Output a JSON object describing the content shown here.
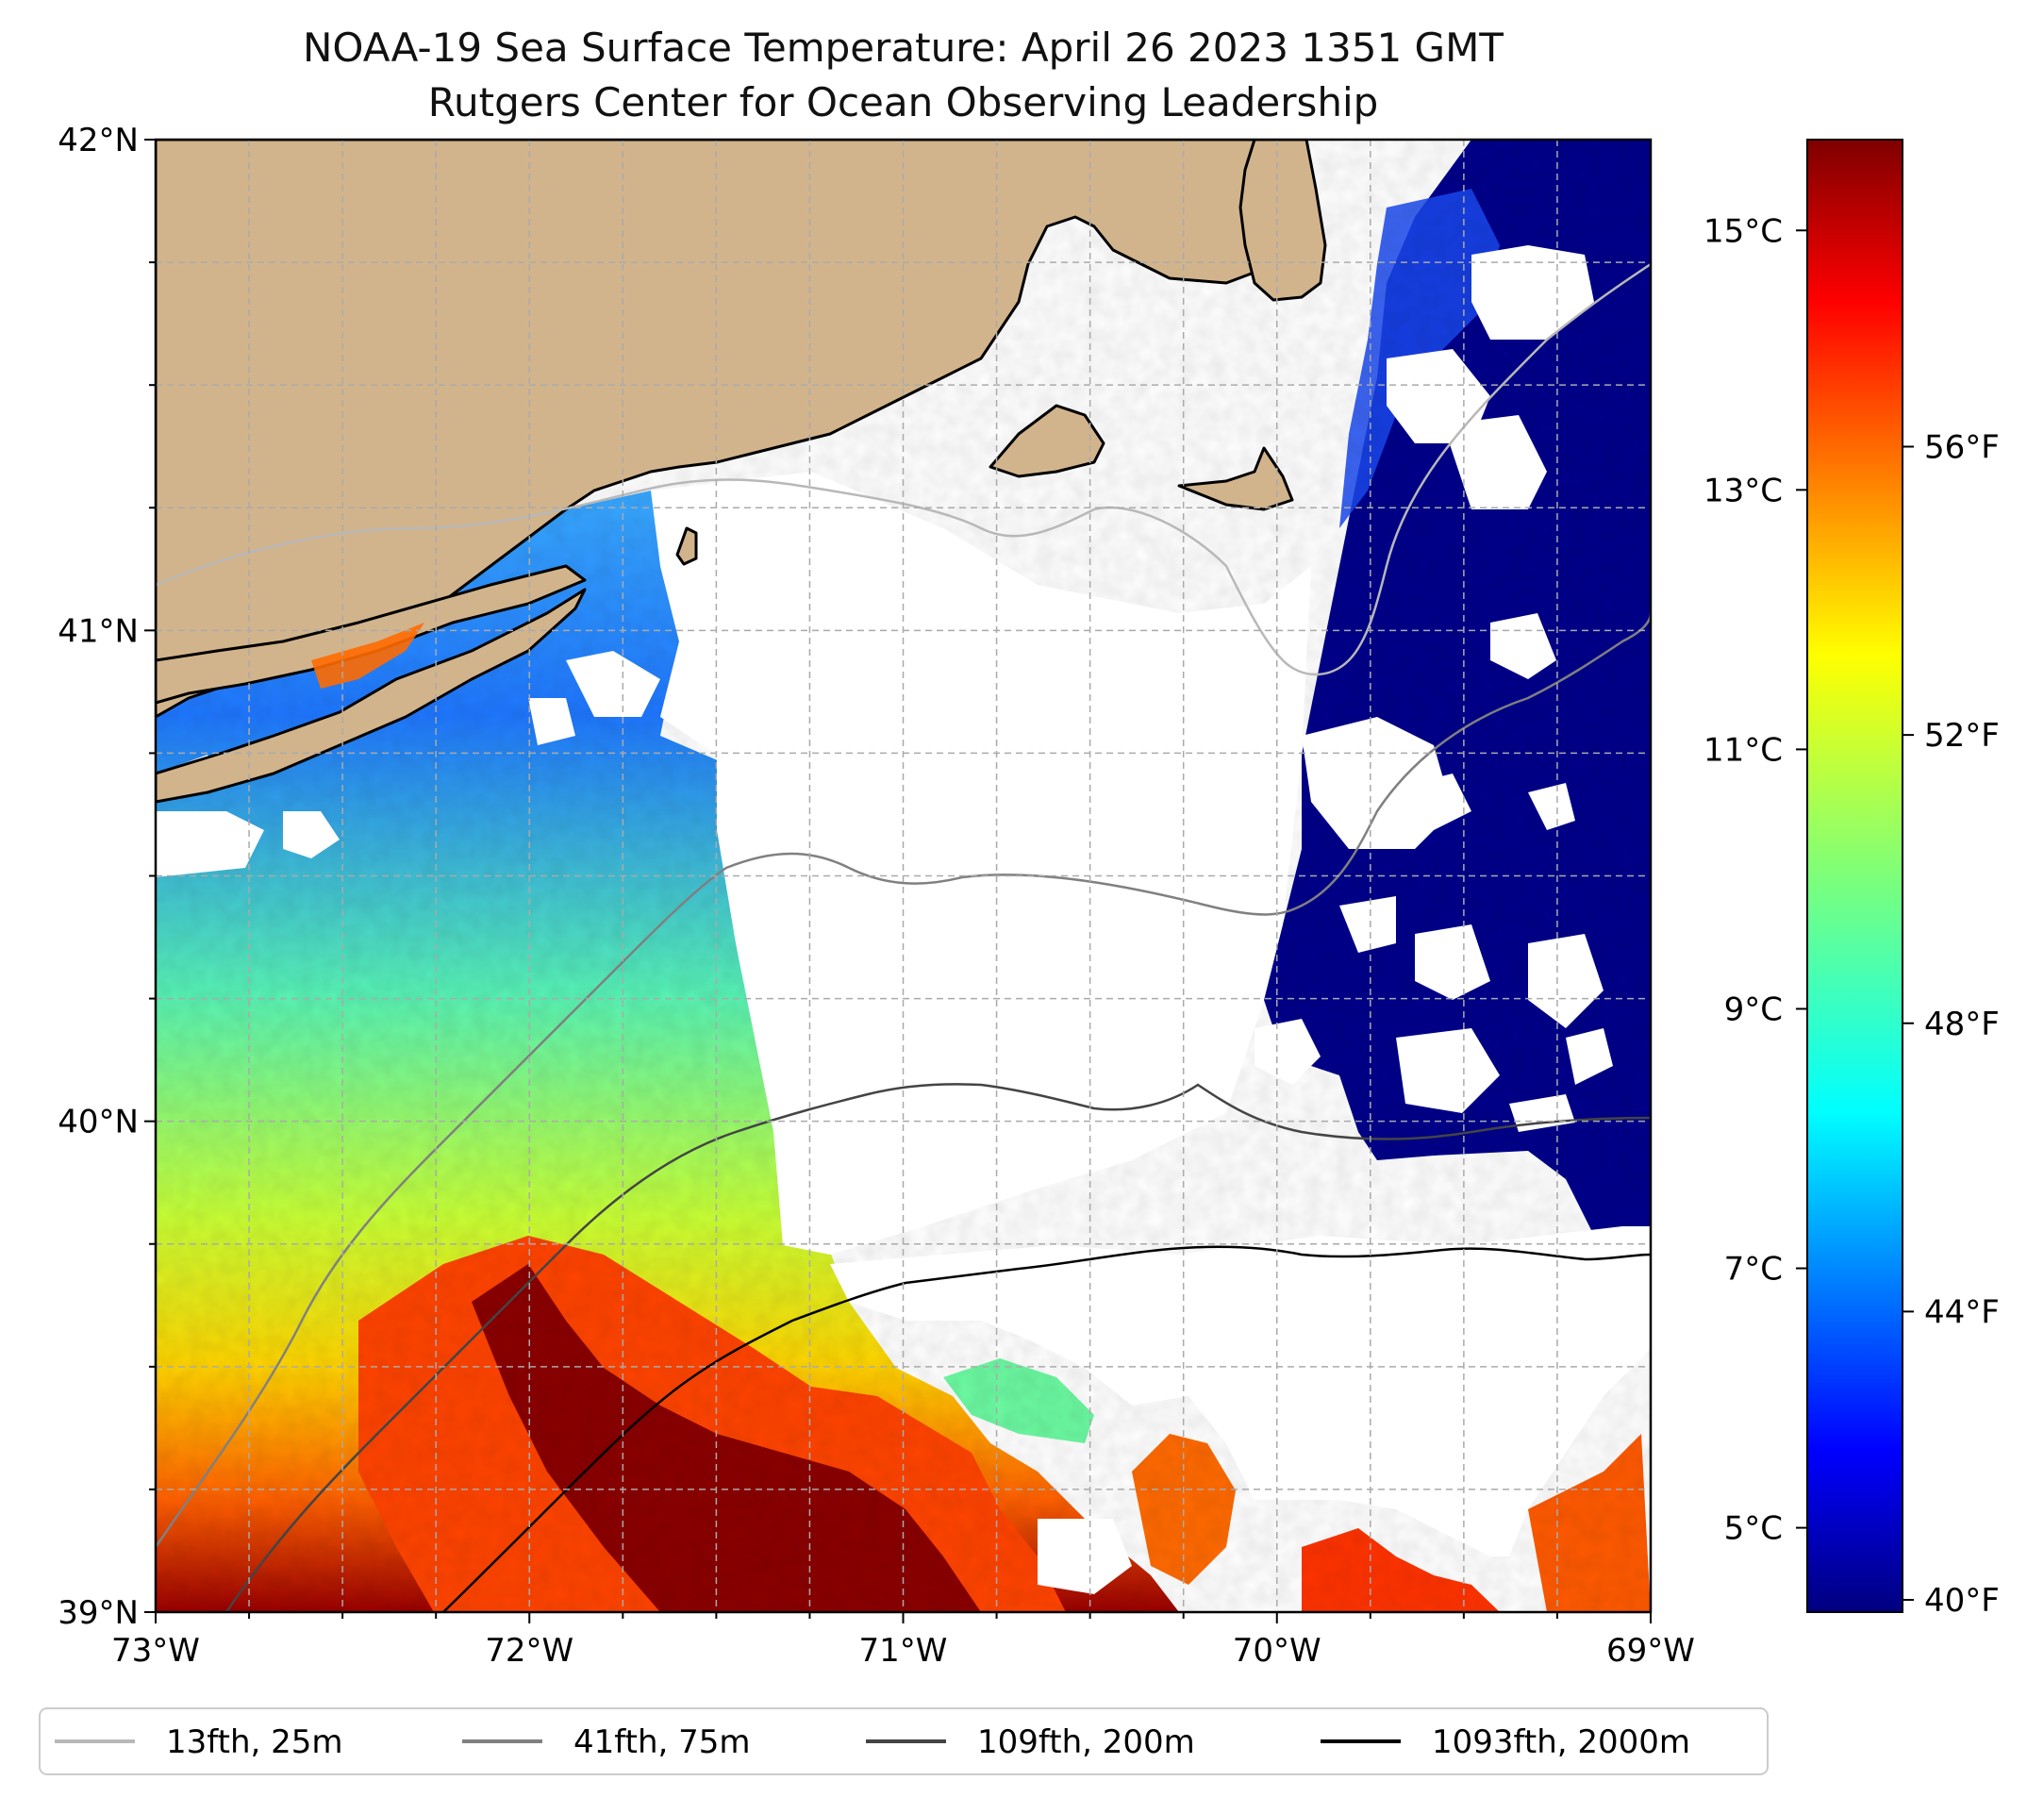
{
  "title": "NOAA-19 Sea Surface Temperature: April 26 2023 1351 GMT",
  "subtitle": "Rutgers Center for Ocean Observing Leadership",
  "map": {
    "lon_range": [
      -73,
      -69
    ],
    "lat_range": [
      39,
      42
    ],
    "lon_ticks": [
      {
        "value": -73,
        "label": "73°W"
      },
      {
        "value": -72,
        "label": "72°W"
      },
      {
        "value": -71,
        "label": "71°W"
      },
      {
        "value": -70,
        "label": "70°W"
      },
      {
        "value": -69,
        "label": "69°W"
      }
    ],
    "lat_ticks": [
      {
        "value": 42,
        "label": "42°N"
      },
      {
        "value": 41,
        "label": "41°N"
      },
      {
        "value": 40,
        "label": "40°N"
      },
      {
        "value": 39,
        "label": "39°N"
      }
    ],
    "land_color": "#d2b48c",
    "grid": true
  },
  "colorbar": {
    "colormap": "jet",
    "celsius_ticks": [
      {
        "value": 15,
        "label": "15°C"
      },
      {
        "value": 13,
        "label": "13°C"
      },
      {
        "value": 11,
        "label": "11°C"
      },
      {
        "value": 9,
        "label": "9°C"
      },
      {
        "value": 7,
        "label": "7°C"
      },
      {
        "value": 5,
        "label": "5°C"
      }
    ],
    "fahrenheit_ticks": [
      {
        "value": 56,
        "label": "56°F"
      },
      {
        "value": 52,
        "label": "52°F"
      },
      {
        "value": 48,
        "label": "48°F"
      },
      {
        "value": 44,
        "label": "44°F"
      },
      {
        "value": 40,
        "label": "40°F"
      }
    ]
  },
  "legend": {
    "items": [
      {
        "label": "13fth, 25m",
        "color": "#b8b8b8"
      },
      {
        "label": "41fth, 75m",
        "color": "#808080"
      },
      {
        "label": "109fth, 200m",
        "color": "#444444"
      },
      {
        "label": "1093fth, 2000m",
        "color": "#000000"
      }
    ]
  }
}
